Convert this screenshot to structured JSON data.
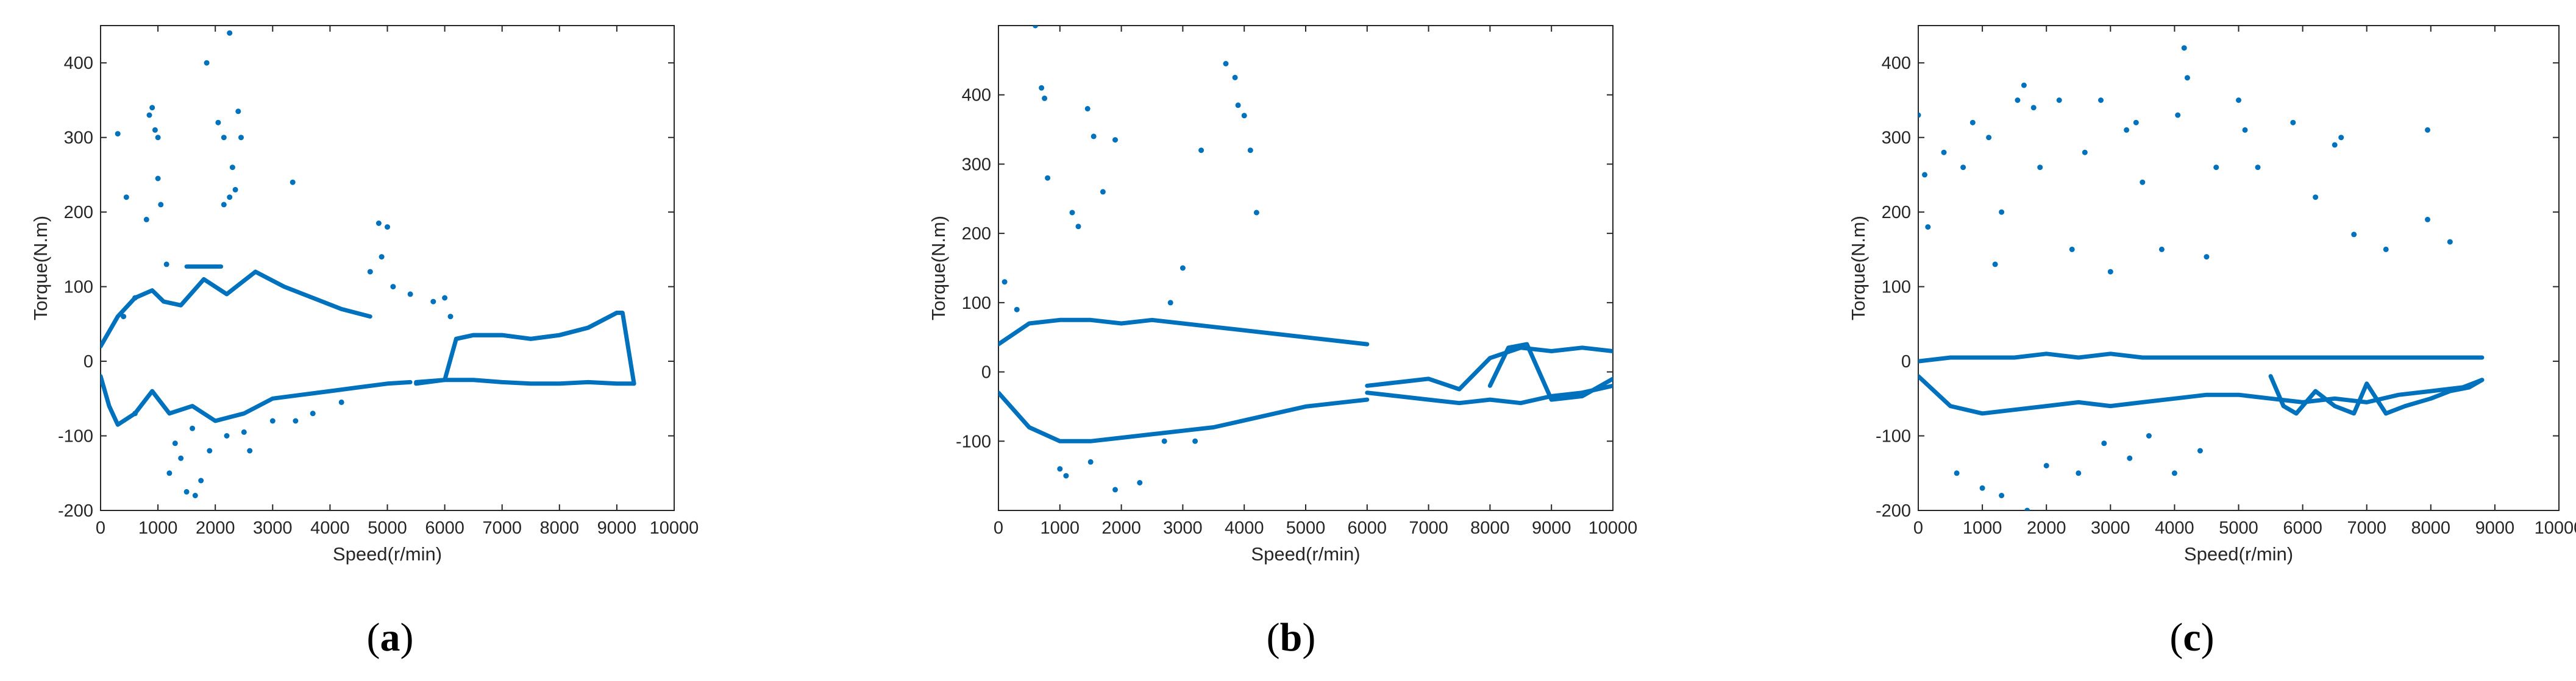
{
  "figure": {
    "captions": [
      "(a)",
      "(b)",
      "(c)"
    ],
    "caption_letters": [
      "a",
      "b",
      "c"
    ],
    "colors": {
      "points": "#0072BD",
      "axes": "#262626",
      "background": "#ffffff"
    }
  },
  "chart_data": [
    {
      "type": "scatter",
      "caption": "(a)",
      "xlabel": "Speed(r/min)",
      "ylabel": "Torque(N.m)",
      "xlim": [
        0,
        10000
      ],
      "ylim": [
        -200,
        450
      ],
      "xticks": [
        0,
        1000,
        2000,
        3000,
        4000,
        5000,
        6000,
        7000,
        8000,
        9000,
        10000
      ],
      "yticks": [
        -200,
        -100,
        0,
        100,
        200,
        300,
        400
      ],
      "box": true,
      "grid": false,
      "points": [
        [
          300,
          305
        ],
        [
          450,
          220
        ],
        [
          800,
          190
        ],
        [
          850,
          330
        ],
        [
          900,
          340
        ],
        [
          950,
          310
        ],
        [
          1000,
          300
        ],
        [
          1050,
          210
        ],
        [
          1000,
          245
        ],
        [
          1150,
          130
        ],
        [
          1850,
          400
        ],
        [
          2050,
          320
        ],
        [
          2150,
          300
        ],
        [
          2250,
          440
        ],
        [
          2150,
          210
        ],
        [
          2300,
          260
        ],
        [
          2400,
          335
        ],
        [
          2450,
          300
        ],
        [
          2250,
          220
        ],
        [
          2350,
          230
        ],
        [
          3350,
          240
        ],
        [
          4850,
          185
        ],
        [
          5000,
          180
        ],
        [
          4900,
          140
        ],
        [
          4700,
          120
        ],
        [
          5100,
          100
        ],
        [
          5400,
          90
        ],
        [
          5800,
          80
        ],
        [
          6000,
          85
        ],
        [
          6100,
          60
        ],
        [
          400,
          60
        ],
        [
          600,
          85
        ],
        [
          1200,
          -150
        ],
        [
          1500,
          -175
        ],
        [
          1650,
          -180
        ],
        [
          1750,
          -160
        ],
        [
          1300,
          -110
        ],
        [
          1400,
          -130
        ],
        [
          1600,
          -90
        ],
        [
          1900,
          -120
        ],
        [
          2200,
          -100
        ],
        [
          2500,
          -95
        ],
        [
          2600,
          -120
        ],
        [
          3000,
          -80
        ],
        [
          3400,
          -80
        ],
        [
          3700,
          -70
        ],
        [
          4200,
          -55
        ],
        [
          600,
          -70
        ]
      ],
      "curves": [
        {
          "x": [
            0,
            300,
            600,
            900,
            1100,
            1400,
            1800,
            2200,
            2700,
            3200,
            3700,
            4200,
            4700
          ],
          "y": [
            20,
            60,
            85,
            95,
            80,
            75,
            110,
            90,
            120,
            100,
            85,
            70,
            60
          ]
        },
        {
          "x": [
            0,
            150,
            300,
            600,
            900,
            1200,
            1600,
            2000,
            2500,
            3000,
            3500,
            4000,
            4500,
            5000,
            5400
          ],
          "y": [
            -20,
            -60,
            -85,
            -70,
            -40,
            -70,
            -60,
            -80,
            -70,
            -50,
            -45,
            -40,
            -35,
            -30,
            -28
          ]
        },
        {
          "x": [
            1500,
            1600,
            1700,
            1800,
            1900,
            2000,
            2100
          ],
          "y": [
            127,
            127,
            127,
            127,
            127,
            127,
            127
          ]
        },
        {
          "x": [
            5500,
            6000,
            6200,
            6500,
            7000,
            7500,
            8000,
            8500,
            9000,
            9100,
            9300
          ],
          "y": [
            -30,
            -25,
            30,
            35,
            35,
            30,
            35,
            45,
            65,
            65,
            -30
          ]
        },
        {
          "x": [
            5500,
            6000,
            6500,
            7000,
            7500,
            8000,
            8500,
            9000,
            9300
          ],
          "y": [
            -28,
            -25,
            -25,
            -28,
            -30,
            -30,
            -28,
            -30,
            -30
          ]
        },
        {
          "x": [
            6200,
            6500,
            7000,
            7500,
            8000,
            8500,
            9000
          ],
          "y": [
            30,
            35,
            35,
            30,
            35,
            45,
            65
          ]
        }
      ]
    },
    {
      "type": "scatter",
      "caption": "(b)",
      "xlabel": "Speed(r/min)",
      "ylabel": "Torque(N.m)",
      "xlim": [
        0,
        10000
      ],
      "ylim": [
        -200,
        500
      ],
      "xticks": [
        0,
        1000,
        2000,
        3000,
        4000,
        5000,
        6000,
        7000,
        8000,
        9000,
        10000
      ],
      "yticks": [
        -100,
        0,
        100,
        200,
        300,
        400
      ],
      "box": true,
      "grid": false,
      "points": [
        [
          600,
          500
        ],
        [
          700,
          410
        ],
        [
          750,
          395
        ],
        [
          800,
          280
        ],
        [
          1450,
          380
        ],
        [
          1550,
          340
        ],
        [
          1900,
          335
        ],
        [
          1700,
          260
        ],
        [
          3300,
          320
        ],
        [
          3700,
          445
        ],
        [
          3850,
          425
        ],
        [
          3900,
          385
        ],
        [
          4000,
          370
        ],
        [
          4100,
          320
        ],
        [
          4200,
          230
        ],
        [
          1200,
          230
        ],
        [
          1300,
          210
        ],
        [
          2800,
          100
        ],
        [
          3000,
          150
        ],
        [
          1000,
          -140
        ],
        [
          1100,
          -150
        ],
        [
          1900,
          -170
        ],
        [
          2300,
          -160
        ],
        [
          1500,
          -130
        ],
        [
          2700,
          -100
        ],
        [
          3200,
          -100
        ],
        [
          100,
          130
        ],
        [
          300,
          90
        ]
      ],
      "curves": [
        {
          "x": [
            0,
            500,
            1000,
            1500,
            2000,
            2500,
            3000,
            3500,
            4000,
            4500,
            5000,
            5500,
            6000
          ],
          "y": [
            40,
            70,
            75,
            75,
            70,
            75,
            70,
            65,
            60,
            55,
            50,
            45,
            40
          ]
        },
        {
          "x": [
            0,
            500,
            1000,
            1500,
            2000,
            2500,
            3000,
            3500,
            4000,
            4500,
            5000,
            5500,
            6000
          ],
          "y": [
            -30,
            -80,
            -100,
            -100,
            -95,
            -90,
            -85,
            -80,
            -70,
            -60,
            -50,
            -45,
            -40
          ]
        },
        {
          "x": [
            6000,
            6500,
            7000,
            7500,
            8000,
            8500,
            9000,
            9500,
            10000
          ],
          "y": [
            -20,
            -15,
            -10,
            -25,
            20,
            35,
            30,
            35,
            30
          ]
        },
        {
          "x": [
            6000,
            6500,
            7000,
            7500,
            8000,
            8500,
            9000,
            9500,
            10000
          ],
          "y": [
            -30,
            -35,
            -40,
            -45,
            -40,
            -45,
            -35,
            -30,
            -20
          ]
        },
        {
          "x": [
            8000,
            8300,
            8600,
            9000,
            9500,
            10000
          ],
          "y": [
            -20,
            35,
            40,
            -40,
            -35,
            -10
          ]
        }
      ]
    },
    {
      "type": "scatter",
      "caption": "(c)",
      "xlabel": "Speed(r/min)",
      "ylabel": "Torque(N.m)",
      "xlim": [
        0,
        10000
      ],
      "ylim": [
        -200,
        450
      ],
      "xticks": [
        0,
        1000,
        2000,
        3000,
        4000,
        5000,
        6000,
        7000,
        8000,
        9000,
        10000
      ],
      "yticks": [
        -200,
        -100,
        0,
        100,
        200,
        300,
        400
      ],
      "box": true,
      "grid": false,
      "points": [
        [
          0,
          330
        ],
        [
          100,
          250
        ],
        [
          150,
          180
        ],
        [
          400,
          280
        ],
        [
          700,
          260
        ],
        [
          850,
          320
        ],
        [
          1100,
          300
        ],
        [
          1300,
          200
        ],
        [
          1550,
          350
        ],
        [
          1650,
          370
        ],
        [
          1800,
          340
        ],
        [
          1900,
          260
        ],
        [
          2200,
          350
        ],
        [
          2600,
          280
        ],
        [
          2850,
          350
        ],
        [
          3250,
          310
        ],
        [
          3400,
          320
        ],
        [
          3500,
          240
        ],
        [
          4150,
          420
        ],
        [
          4200,
          380
        ],
        [
          4050,
          330
        ],
        [
          5000,
          350
        ],
        [
          5100,
          310
        ],
        [
          5300,
          260
        ],
        [
          5850,
          320
        ],
        [
          6200,
          220
        ],
        [
          6500,
          290
        ],
        [
          6600,
          300
        ],
        [
          6800,
          170
        ],
        [
          7950,
          310
        ],
        [
          7950,
          190
        ],
        [
          8300,
          160
        ],
        [
          7300,
          150
        ],
        [
          4650,
          260
        ],
        [
          4500,
          140
        ],
        [
          3800,
          150
        ],
        [
          3000,
          120
        ],
        [
          2400,
          150
        ],
        [
          1200,
          130
        ],
        [
          600,
          -150
        ],
        [
          1000,
          -170
        ],
        [
          1300,
          -180
        ],
        [
          1700,
          -200
        ],
        [
          2000,
          -140
        ],
        [
          2500,
          -150
        ],
        [
          3300,
          -130
        ],
        [
          4000,
          -150
        ],
        [
          3600,
          -100
        ],
        [
          2900,
          -110
        ],
        [
          4400,
          -120
        ]
      ],
      "curves": [
        {
          "x": [
            0,
            500,
            1000,
            1500,
            2000,
            2500,
            3000,
            3500,
            4000,
            4500,
            5000,
            5500,
            6000,
            6500,
            7000,
            7500,
            8000,
            8500,
            8800
          ],
          "y": [
            0,
            5,
            5,
            5,
            10,
            5,
            10,
            5,
            5,
            5,
            5,
            5,
            5,
            5,
            5,
            5,
            5,
            5,
            5
          ]
        },
        {
          "x": [
            0,
            500,
            1000,
            1500,
            2000,
            2500,
            3000,
            3500,
            4000,
            4500,
            5000,
            5500,
            6000,
            6500,
            7000,
            7500,
            8000,
            8500,
            8800
          ],
          "y": [
            -20,
            -60,
            -70,
            -65,
            -60,
            -55,
            -60,
            -55,
            -50,
            -45,
            -45,
            -50,
            -55,
            -50,
            -55,
            -45,
            -40,
            -35,
            -25
          ]
        },
        {
          "x": [
            5500,
            5700,
            5900,
            6200,
            6500,
            6800,
            7000,
            7300,
            7600,
            8000,
            8300,
            8600,
            8800
          ],
          "y": [
            -20,
            -60,
            -70,
            -40,
            -60,
            -70,
            -30,
            -70,
            -60,
            -50,
            -40,
            -35,
            -25
          ]
        }
      ]
    }
  ]
}
